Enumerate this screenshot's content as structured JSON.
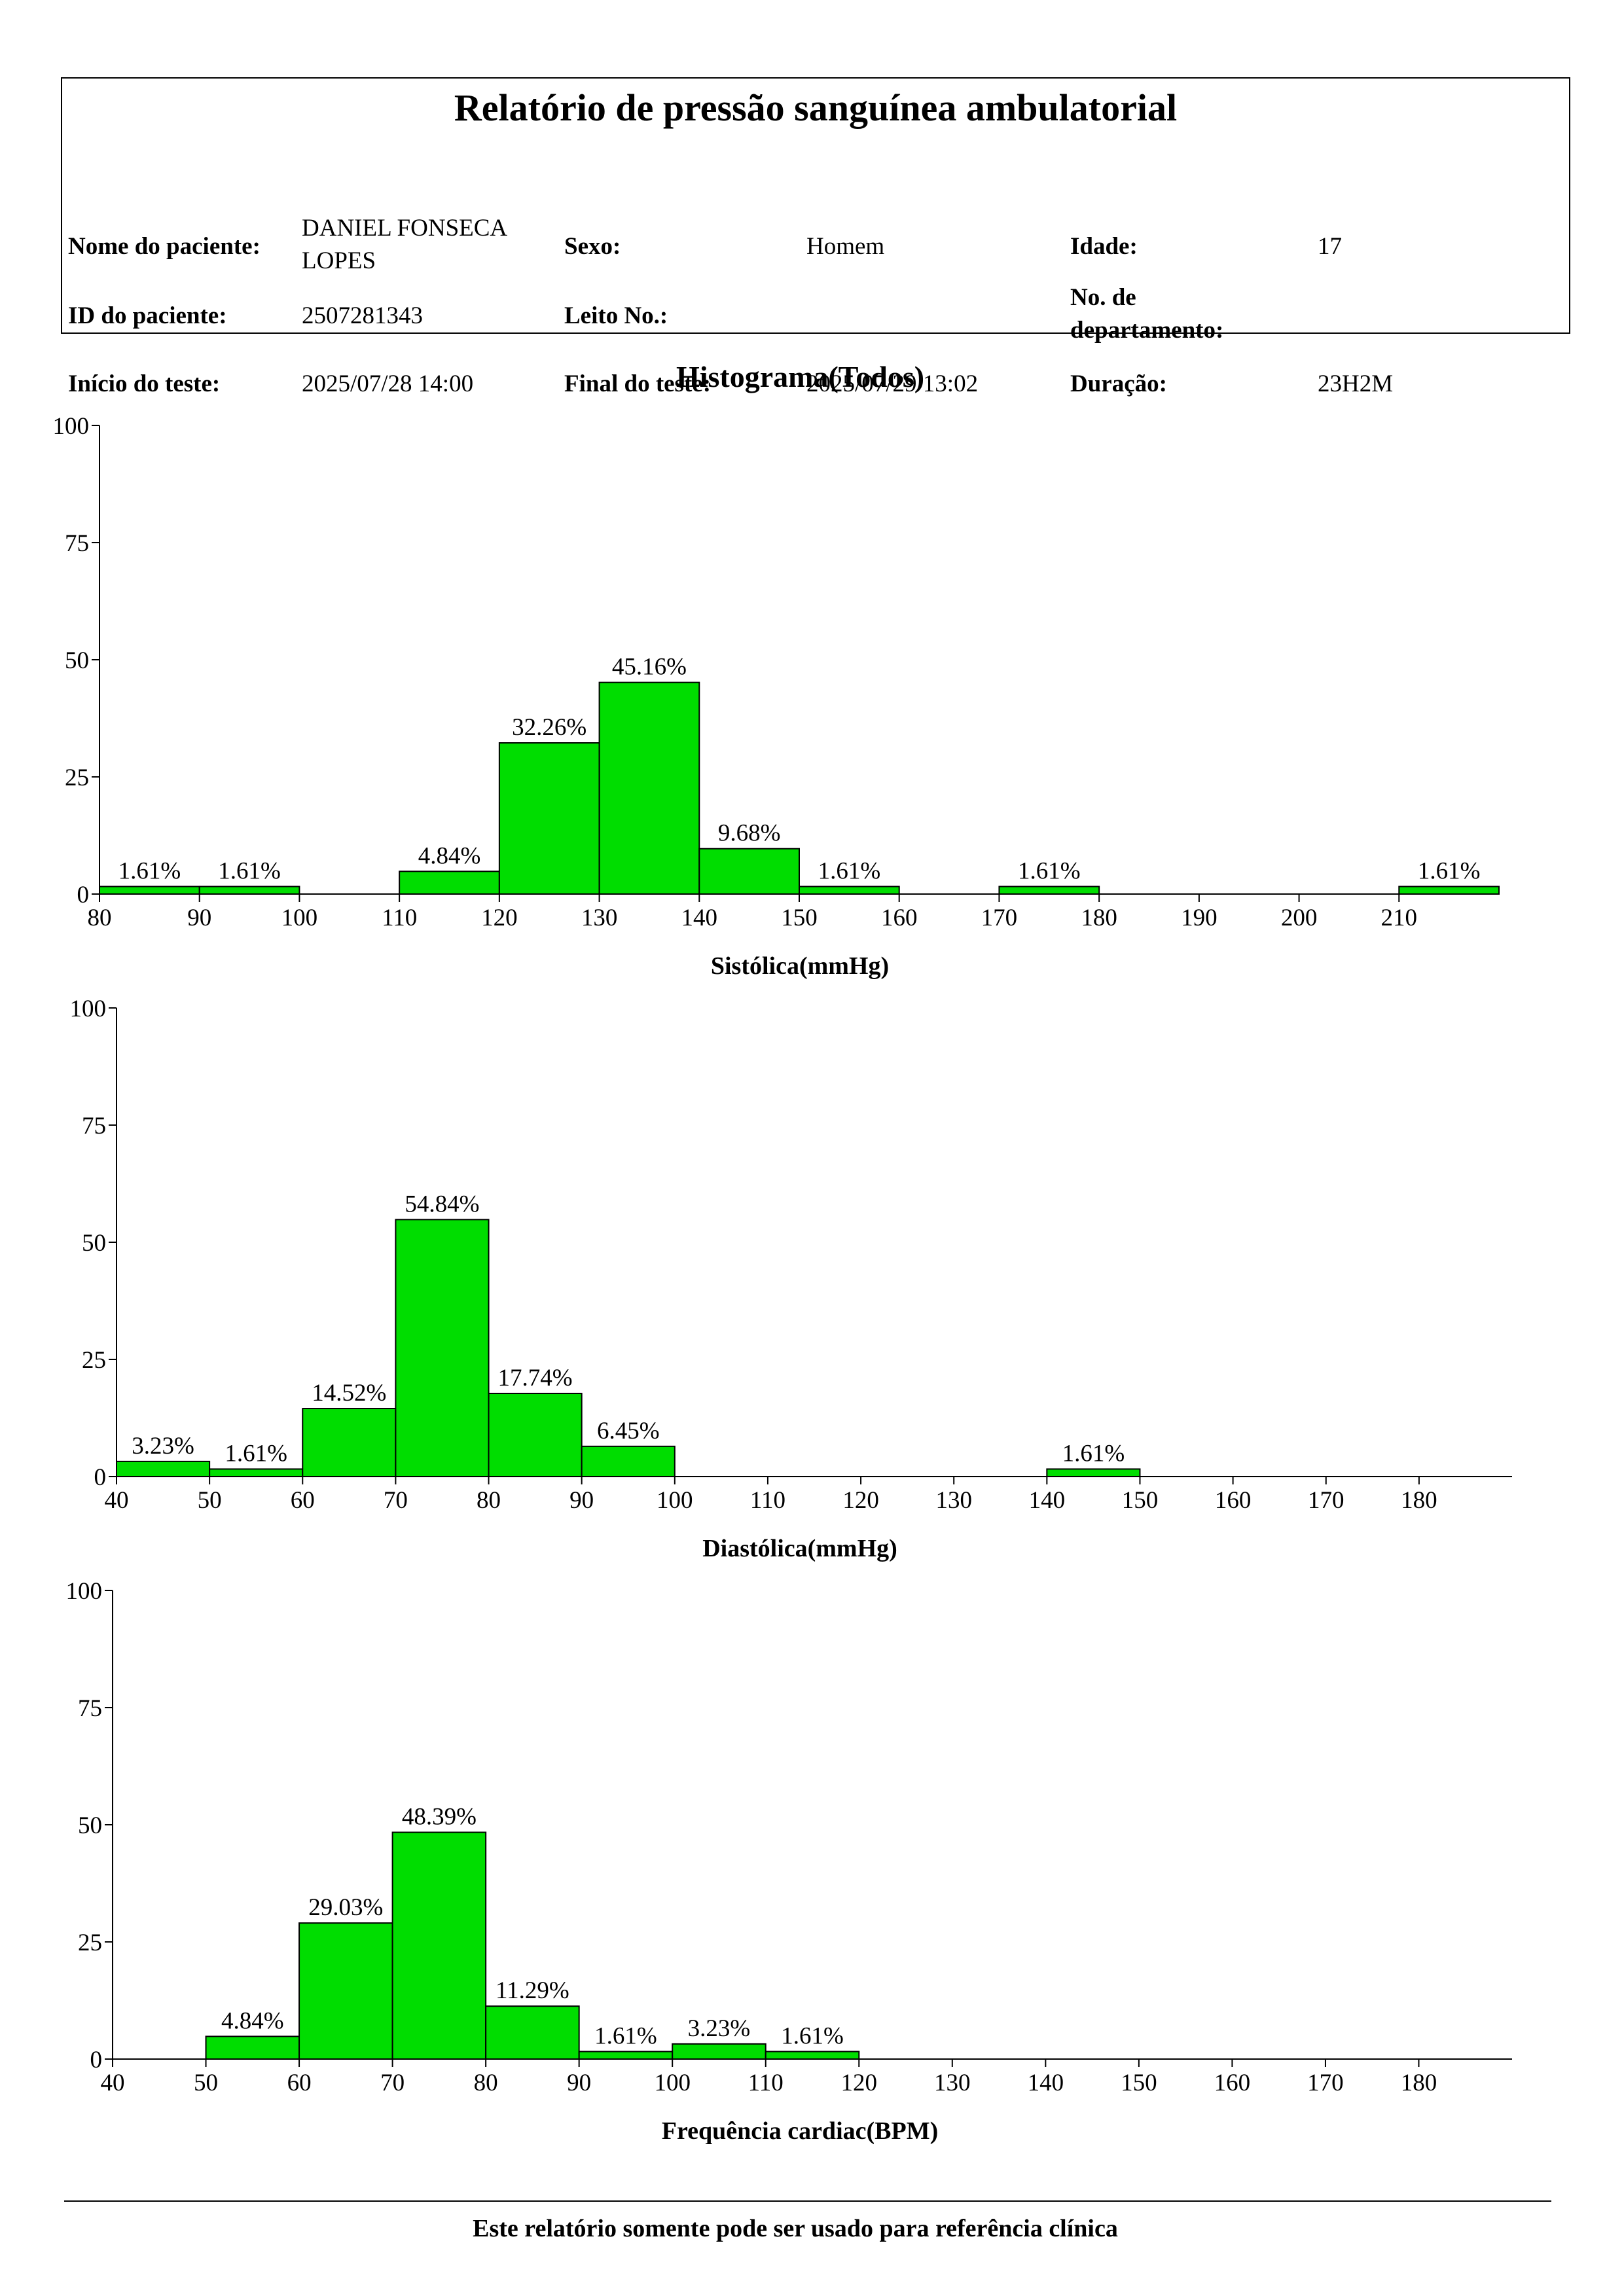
{
  "report": {
    "title": "Relatório de pressão sanguínea ambulatorial",
    "patient_name_label": "Nome do paciente:",
    "patient_name_line1": "DANIEL FONSECA",
    "patient_name_line2": "LOPES",
    "sex_label": "Sexo:",
    "sex_value": "Homem",
    "age_label": "Idade:",
    "age_value": "17",
    "patient_id_label": "ID do paciente:",
    "patient_id_value": "2507281343",
    "bed_label": "Leito No.:",
    "bed_value": "",
    "dept_label_line1": "No. de",
    "dept_label_line2": "departamento:",
    "dept_value": "",
    "start_label": "Início do teste:",
    "start_value": "2025/07/28 14:00",
    "end_label": "Final do teste:",
    "end_value": "2025/07/29 13:02",
    "duration_label": "Duração:",
    "duration_value": "23H2M"
  },
  "histogram_title": "Histograma(Todos)",
  "footer": "Este relatório somente pode ser usado para referência clínica",
  "colors": {
    "bar": "#00dd00",
    "axis": "#000000"
  },
  "chart_data": [
    {
      "type": "bar",
      "xlabel": "Sistólica(mmHg)",
      "ylabel": "",
      "ylim": [
        0,
        100
      ],
      "yticks": [
        "0",
        "25",
        "50",
        "75",
        "100"
      ],
      "xticks": [
        "80",
        "90",
        "100",
        "110",
        "120",
        "130",
        "140",
        "150",
        "160",
        "170",
        "180",
        "190",
        "200",
        "210"
      ],
      "xlim": [
        80,
        220
      ],
      "bins": [
        {
          "from": 80,
          "to": 90,
          "value": 1.61,
          "label": "1.61%"
        },
        {
          "from": 90,
          "to": 100,
          "value": 1.61,
          "label": "1.61%"
        },
        {
          "from": 110,
          "to": 120,
          "value": 4.84,
          "label": "4.84%"
        },
        {
          "from": 120,
          "to": 130,
          "value": 32.26,
          "label": "32.26%"
        },
        {
          "from": 130,
          "to": 140,
          "value": 45.16,
          "label": "45.16%"
        },
        {
          "from": 140,
          "to": 150,
          "value": 9.68,
          "label": "9.68%"
        },
        {
          "from": 150,
          "to": 160,
          "value": 1.61,
          "label": "1.61%"
        },
        {
          "from": 170,
          "to": 180,
          "value": 1.61,
          "label": "1.61%"
        },
        {
          "from": 210,
          "to": 220,
          "value": 1.61,
          "label": "1.61%"
        }
      ]
    },
    {
      "type": "bar",
      "xlabel": "Diastólica(mmHg)",
      "ylabel": "",
      "ylim": [
        0,
        100
      ],
      "yticks": [
        "0",
        "25",
        "50",
        "75",
        "100"
      ],
      "xticks": [
        "40",
        "50",
        "60",
        "70",
        "80",
        "90",
        "100",
        "110",
        "120",
        "130",
        "140",
        "150",
        "160",
        "170",
        "180"
      ],
      "xlim": [
        40,
        190
      ],
      "bins": [
        {
          "from": 40,
          "to": 50,
          "value": 3.23,
          "label": "3.23%"
        },
        {
          "from": 50,
          "to": 60,
          "value": 1.61,
          "label": "1.61%"
        },
        {
          "from": 60,
          "to": 70,
          "value": 14.52,
          "label": "14.52%"
        },
        {
          "from": 70,
          "to": 80,
          "value": 54.84,
          "label": "54.84%"
        },
        {
          "from": 80,
          "to": 90,
          "value": 17.74,
          "label": "17.74%"
        },
        {
          "from": 90,
          "to": 100,
          "value": 6.45,
          "label": "6.45%"
        },
        {
          "from": 140,
          "to": 150,
          "value": 1.61,
          "label": "1.61%"
        }
      ]
    },
    {
      "type": "bar",
      "xlabel": "Frequência cardiac(BPM)",
      "ylabel": "",
      "ylim": [
        0,
        100
      ],
      "yticks": [
        "0",
        "25",
        "50",
        "75",
        "100"
      ],
      "xticks": [
        "40",
        "50",
        "60",
        "70",
        "80",
        "90",
        "100",
        "110",
        "120",
        "130",
        "140",
        "150",
        "160",
        "170",
        "180"
      ],
      "xlim": [
        40,
        190
      ],
      "bins": [
        {
          "from": 50,
          "to": 60,
          "value": 4.84,
          "label": "4.84%"
        },
        {
          "from": 60,
          "to": 70,
          "value": 29.03,
          "label": "29.03%"
        },
        {
          "from": 70,
          "to": 80,
          "value": 48.39,
          "label": "48.39%"
        },
        {
          "from": 80,
          "to": 90,
          "value": 11.29,
          "label": "11.29%"
        },
        {
          "from": 90,
          "to": 100,
          "value": 1.61,
          "label": "1.61%"
        },
        {
          "from": 100,
          "to": 110,
          "value": 3.23,
          "label": "3.23%"
        },
        {
          "from": 110,
          "to": 120,
          "value": 1.61,
          "label": "1.61%"
        }
      ]
    }
  ]
}
